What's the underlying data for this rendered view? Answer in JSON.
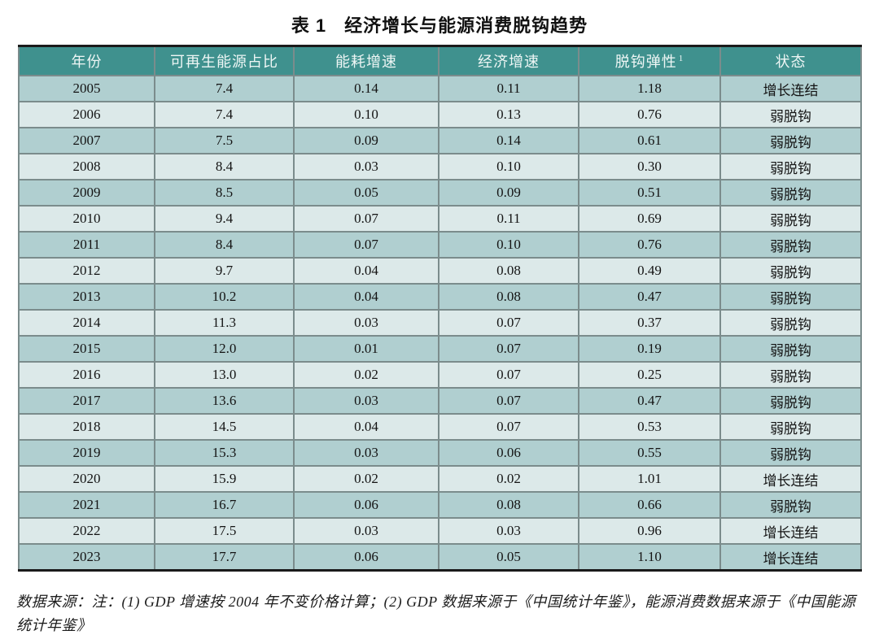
{
  "title": {
    "table_label": "表 1",
    "text": "经济增长与能源消费脱钩趋势"
  },
  "table": {
    "columns": [
      "年份",
      "可再生能源占比",
      "能耗增速",
      "经济增速",
      "脱钩弹性",
      "状态"
    ],
    "decoupling_superscript": "1",
    "column_keys": [
      "year",
      "renewable-share",
      "energy-growth",
      "gdp-growth",
      "decoupling-elasticity",
      "status"
    ],
    "rows": [
      [
        "2005",
        "7.4",
        "0.14",
        "0.11",
        "1.18",
        "增长连结"
      ],
      [
        "2006",
        "7.4",
        "0.10",
        "0.13",
        "0.76",
        "弱脱钩"
      ],
      [
        "2007",
        "7.5",
        "0.09",
        "0.14",
        "0.61",
        "弱脱钩"
      ],
      [
        "2008",
        "8.4",
        "0.03",
        "0.10",
        "0.30",
        "弱脱钩"
      ],
      [
        "2009",
        "8.5",
        "0.05",
        "0.09",
        "0.51",
        "弱脱钩"
      ],
      [
        "2010",
        "9.4",
        "0.07",
        "0.11",
        "0.69",
        "弱脱钩"
      ],
      [
        "2011",
        "8.4",
        "0.07",
        "0.10",
        "0.76",
        "弱脱钩"
      ],
      [
        "2012",
        "9.7",
        "0.04",
        "0.08",
        "0.49",
        "弱脱钩"
      ],
      [
        "2013",
        "10.2",
        "0.04",
        "0.08",
        "0.47",
        "弱脱钩"
      ],
      [
        "2014",
        "11.3",
        "0.03",
        "0.07",
        "0.37",
        "弱脱钩"
      ],
      [
        "2015",
        "12.0",
        "0.01",
        "0.07",
        "0.19",
        "弱脱钩"
      ],
      [
        "2016",
        "13.0",
        "0.02",
        "0.07",
        "0.25",
        "弱脱钩"
      ],
      [
        "2017",
        "13.6",
        "0.03",
        "0.07",
        "0.47",
        "弱脱钩"
      ],
      [
        "2018",
        "14.5",
        "0.04",
        "0.07",
        "0.53",
        "弱脱钩"
      ],
      [
        "2019",
        "15.3",
        "0.03",
        "0.06",
        "0.55",
        "弱脱钩"
      ],
      [
        "2020",
        "15.9",
        "0.02",
        "0.02",
        "1.01",
        "增长连结"
      ],
      [
        "2021",
        "16.7",
        "0.06",
        "0.08",
        "0.66",
        "弱脱钩"
      ],
      [
        "2022",
        "17.5",
        "0.03",
        "0.03",
        "0.96",
        "增长连结"
      ],
      [
        "2023",
        "17.7",
        "0.06",
        "0.05",
        "1.10",
        "增长连结"
      ]
    ]
  },
  "footnote": "数据来源：注：(1) GDP 增速按 2004 年不变价格计算；(2) GDP 数据来源于《中国统计年鉴》，能源消费数据来源于《中国能源统计年鉴》",
  "colors": {
    "header_bg": "#3f918e",
    "header_text": "#eef6f5",
    "row_odd_bg": "#b0cfd0",
    "row_even_bg": "#dce9e9",
    "inner_border": "#7b8c8c",
    "outer_border": "#1a1a1a",
    "body_text": "#141414"
  }
}
